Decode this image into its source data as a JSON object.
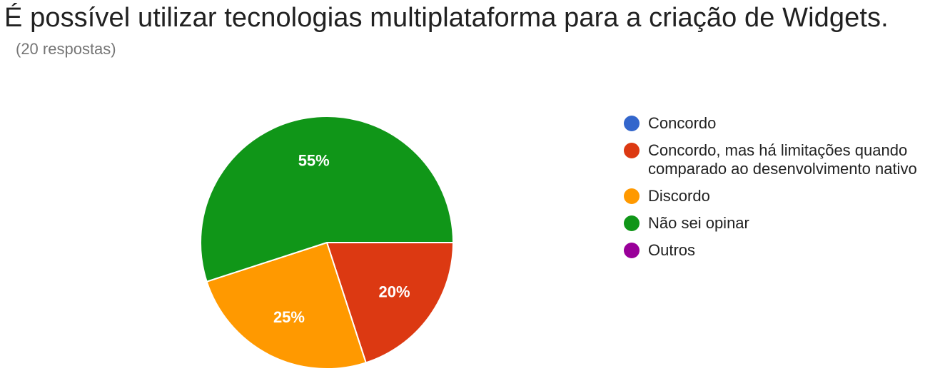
{
  "chart_data": {
    "type": "pie",
    "title": "É possível utilizar tecnologias multiplataforma para a criação de Widgets.",
    "subtitle": "(20 respostas)",
    "categories": [
      "Concordo",
      "Concordo, mas há limitações quando comparado ao desenvolvimento nativo",
      "Discordo",
      "Não sei opinar",
      "Outros"
    ],
    "values": [
      0,
      20,
      25,
      55,
      0
    ],
    "labels": [
      "",
      "20%",
      "25%",
      "55%",
      ""
    ],
    "colors": [
      "#3366cc",
      "#dc3912",
      "#ff9900",
      "#109618",
      "#990099"
    ],
    "legend_position": "right"
  }
}
